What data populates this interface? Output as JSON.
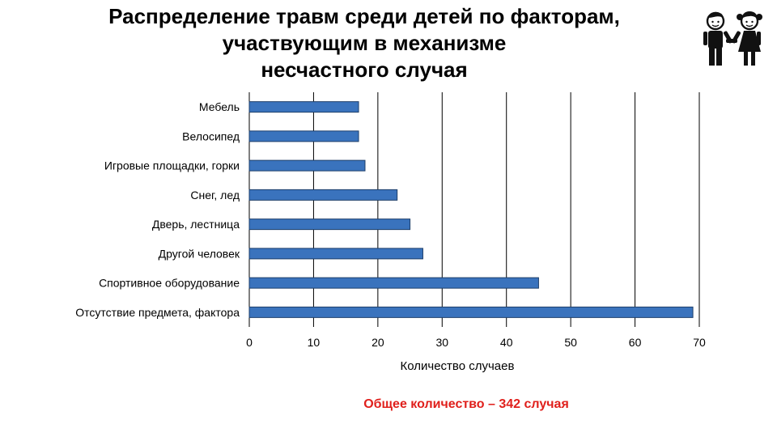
{
  "title_lines": [
    "Распределение травм среди детей по факторам,",
    "участвующим в механизме",
    "несчастного случая"
  ],
  "total_note": "Общее количество – 342 случая",
  "colors": {
    "bar": "#3a73bd",
    "bar_stroke": "#1e3f6a",
    "grid": "#000000",
    "note": "#e0201c"
  },
  "icons": {
    "title_icon": "boy-girl-holding-hands-icon"
  },
  "chart_data": {
    "type": "bar",
    "orientation": "horizontal",
    "categories": [
      "Мебель",
      "Велосипед",
      "Игровые площадки, горки",
      "Снег, лед",
      "Дверь, лестница",
      "Другой человек",
      "Спортивное оборудование",
      "Отсутствие предмета, фактора"
    ],
    "values": [
      17,
      17,
      18,
      23,
      25,
      27,
      45,
      69
    ],
    "xlabel": "Количество случаев",
    "ylabel": "",
    "xlim": [
      0,
      70
    ],
    "x_ticks": [
      0,
      10,
      20,
      30,
      40,
      50,
      60,
      70
    ],
    "grid": "vertical"
  }
}
